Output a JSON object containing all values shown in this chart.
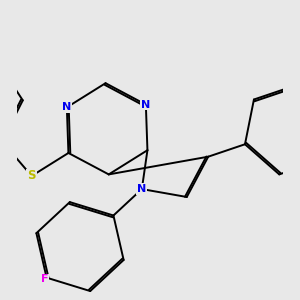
{
  "bg_color": "#e8e8e8",
  "bond_color": "#000000",
  "N_color": "#0000ee",
  "S_color": "#bbbb00",
  "F_color": "#ee00ee",
  "bond_width": 1.4,
  "dbo": 0.035,
  "figsize": [
    3.0,
    3.0
  ],
  "dpi": 100,
  "xlim": [
    -2.5,
    2.5
  ],
  "ylim": [
    -2.8,
    2.8
  ]
}
